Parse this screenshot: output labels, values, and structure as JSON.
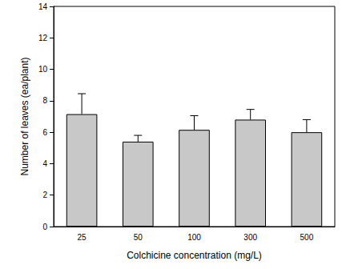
{
  "chart_data": {
    "type": "bar",
    "x_label": "Colchicine concentration (mg/L)",
    "y_label": "Number of leaves (ea/plant)",
    "categories": [
      "25",
      "50",
      "100",
      "300",
      "500"
    ],
    "values": [
      7.15,
      5.4,
      6.15,
      6.8,
      6.0
    ],
    "errors": [
      1.3,
      0.4,
      0.9,
      0.65,
      0.8
    ],
    "color": "#c8c8c8",
    "ylim": [
      0,
      14
    ],
    "yticks": [
      0,
      2,
      4,
      6,
      8,
      10,
      12,
      14
    ],
    "grid": false
  }
}
